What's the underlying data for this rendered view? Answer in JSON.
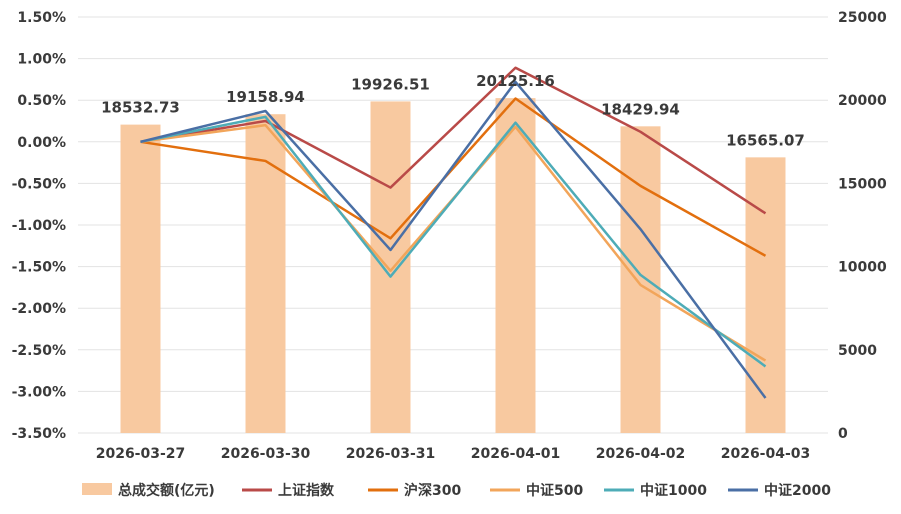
{
  "chart_data": {
    "type": "bar+line",
    "categories": [
      "2026-03-27",
      "2026-03-30",
      "2026-03-31",
      "2026-04-01",
      "2026-04-02",
      "2026-04-03"
    ],
    "bar_series": {
      "name": "总成交额(亿元)",
      "axis": "right",
      "color": "#f8c9a0",
      "values": [
        18532.73,
        19158.94,
        19926.51,
        20125.16,
        18429.94,
        16565.07
      ],
      "labels": [
        "18532.73",
        "19158.94",
        "19926.51",
        "20125.16",
        "18429.94",
        "16565.07"
      ]
    },
    "line_series": [
      {
        "name": "上证指数",
        "color": "#b94a48",
        "values": [
          0.0,
          0.25,
          -0.55,
          0.89,
          0.12,
          -0.86
        ]
      },
      {
        "name": "沪深300",
        "color": "#e26f0e",
        "values": [
          0.0,
          -0.23,
          -1.16,
          0.52,
          -0.53,
          -1.37
        ]
      },
      {
        "name": "中证500",
        "color": "#f2a55a",
        "values": [
          0.0,
          0.2,
          -1.55,
          0.18,
          -1.72,
          -2.63
        ]
      },
      {
        "name": "中证1000",
        "color": "#4eacb7",
        "values": [
          0.0,
          0.3,
          -1.62,
          0.23,
          -1.6,
          -2.7
        ]
      },
      {
        "name": "中证2000",
        "color": "#4a6fa5",
        "values": [
          0.0,
          0.37,
          -1.3,
          0.72,
          -1.05,
          -3.08
        ]
      }
    ],
    "left_axis": {
      "min": -3.5,
      "max": 1.5,
      "step": 0.5,
      "tick_labels": [
        "1.50%",
        "1.00%",
        "0.50%",
        "0.00%",
        "-0.50%",
        "-1.00%",
        "-1.50%",
        "-2.00%",
        "-2.50%",
        "-3.00%",
        "-3.50%"
      ]
    },
    "right_axis": {
      "min": 0,
      "max": 25000,
      "step": 5000,
      "tick_labels": [
        "25000",
        "20000",
        "15000",
        "10000",
        "5000",
        "0"
      ]
    },
    "grid": true,
    "legend_position": "bottom"
  }
}
